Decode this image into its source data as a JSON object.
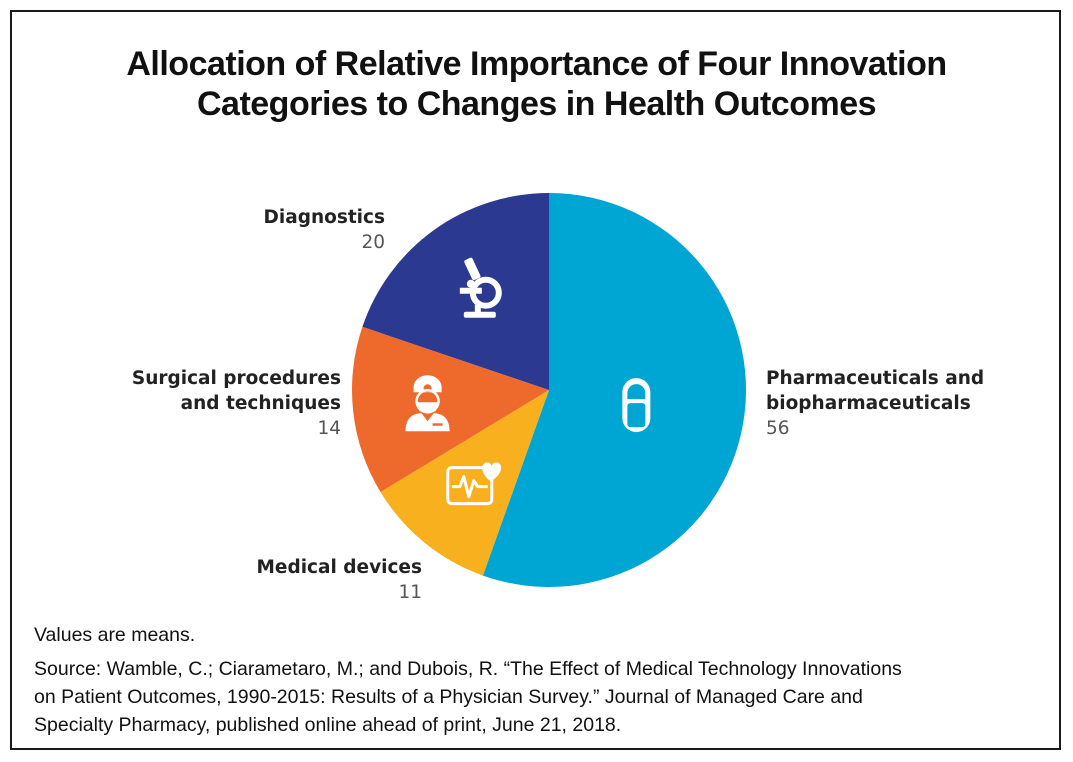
{
  "title": {
    "line1": "Allocation of Relative Importance of Four Innovation",
    "line2": "Categories to Changes in Health Outcomes"
  },
  "chart_data": {
    "type": "pie",
    "title": "Allocation of Relative Importance of Four Innovation Categories to Changes in Health Outcomes",
    "slices": [
      {
        "label": "Pharmaceuticals and biopharmaceuticals",
        "label_line1": "Pharmaceuticals and",
        "label_line2": "biopharmaceuticals",
        "value": 56,
        "color": "#00a6d3",
        "icon": "pill-icon"
      },
      {
        "label": "Medical devices",
        "value": 11,
        "color": "#f8b01e",
        "icon": "heart-monitor-icon"
      },
      {
        "label": "Surgical procedures and techniques",
        "label_line1": "Surgical procedures",
        "label_line2": "and techniques",
        "value": 14,
        "color": "#ee6a2c",
        "icon": "surgeon-icon"
      },
      {
        "label": "Diagnostics",
        "value": 20,
        "color": "#2b3990",
        "icon": "microscope-icon"
      }
    ],
    "start_angle_deg": 0,
    "direction": "clockwise"
  },
  "notes": {
    "values_note": "Values are means.",
    "source_line1": "Source: Wamble, C.; Ciarametaro, M.; and Dubois, R. “The Effect of Medical Technology Innovations",
    "source_line2": "on Patient Outcomes, 1990-2015: Results of a Physician Survey.” Journal of Managed Care and",
    "source_line3": "Specialty Pharmacy, published online ahead of print, June 21, 2018."
  }
}
